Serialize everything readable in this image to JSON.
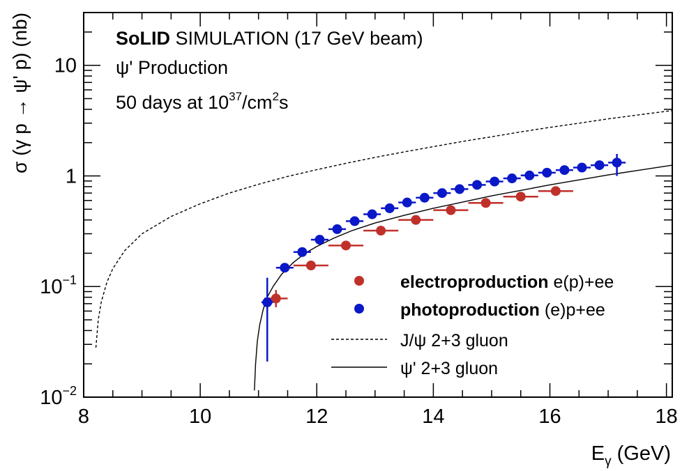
{
  "chart_data": {
    "type": "scatter",
    "title_bold": "SoLID",
    "title_rest": " SIMULATION (17 GeV beam)",
    "subtitle": "ψ' Production",
    "lumi_prefix": "50 days at 10",
    "lumi_exp": "37",
    "lumi_mid": "/cm",
    "lumi_exp2": "2",
    "lumi_suffix": "s",
    "xlabel_main": "E",
    "xlabel_sub": "γ",
    "xlabel_rest": " (GeV)",
    "ylabel": "σ (γ p → ψ' p) (nb)",
    "xlim": [
      8,
      18.1
    ],
    "ylim": [
      0.01,
      30
    ],
    "yscale": "log",
    "x_ticks": [
      8,
      10,
      12,
      14,
      16,
      18
    ],
    "x_tick_labels": [
      "8",
      "10",
      "12",
      "14",
      "16",
      "18"
    ],
    "y_tick_labels": [
      {
        "value": 10,
        "base": "10",
        "exp": ""
      },
      {
        "value": 1,
        "base": "1",
        "exp": ""
      },
      {
        "value": 0.1,
        "base": "10",
        "exp": "−1"
      },
      {
        "value": 0.01,
        "base": "10",
        "exp": "−2"
      }
    ],
    "legend_position": "bottom-right",
    "series": [
      {
        "name": "electroproduction",
        "name_bold": "electroproduction",
        "name_rest": " e(p)+ee",
        "kind": "points",
        "color": "#c0302a",
        "x": [
          11.3,
          11.9,
          12.5,
          13.1,
          13.7,
          14.3,
          14.9,
          15.5,
          16.1
        ],
        "y": [
          0.078,
          0.155,
          0.235,
          0.32,
          0.4,
          0.49,
          0.57,
          0.65,
          0.73
        ],
        "xerr": [
          0.2,
          0.3,
          0.3,
          0.3,
          0.3,
          0.3,
          0.3,
          0.3,
          0.3
        ],
        "yerr_lo": [
          0.065,
          0.148,
          0.228,
          0.313,
          0.393,
          0.483,
          0.563,
          0.643,
          0.723
        ],
        "yerr_hi": [
          0.093,
          0.163,
          0.243,
          0.327,
          0.407,
          0.497,
          0.577,
          0.657,
          0.737
        ]
      },
      {
        "name": "photoproduction",
        "name_bold": "photoproduction",
        "name_rest": " (e)p+ee",
        "kind": "points",
        "color": "#0a18c8",
        "x": [
          11.15,
          11.45,
          11.75,
          12.05,
          12.35,
          12.65,
          12.95,
          13.25,
          13.55,
          13.85,
          14.15,
          14.45,
          14.75,
          15.05,
          15.35,
          15.65,
          15.95,
          16.25,
          16.55,
          16.85,
          17.15
        ],
        "y": [
          0.072,
          0.148,
          0.205,
          0.265,
          0.33,
          0.39,
          0.45,
          0.51,
          0.575,
          0.635,
          0.7,
          0.76,
          0.83,
          0.89,
          0.95,
          1.01,
          1.07,
          1.13,
          1.19,
          1.25,
          1.32
        ],
        "xerr": [
          0.1,
          0.15,
          0.15,
          0.15,
          0.15,
          0.15,
          0.15,
          0.15,
          0.15,
          0.15,
          0.15,
          0.15,
          0.15,
          0.15,
          0.15,
          0.15,
          0.15,
          0.15,
          0.15,
          0.15,
          0.15
        ],
        "yerr_lo": [
          0.021,
          0.14,
          0.196,
          0.255,
          0.32,
          0.38,
          0.44,
          0.5,
          0.565,
          0.625,
          0.69,
          0.745,
          0.815,
          0.87,
          0.93,
          0.985,
          1.04,
          1.1,
          1.155,
          1.205,
          1.0
        ],
        "yerr_hi": [
          0.12,
          0.156,
          0.214,
          0.275,
          0.34,
          0.4,
          0.46,
          0.52,
          0.585,
          0.645,
          0.71,
          0.775,
          0.845,
          0.91,
          0.97,
          1.035,
          1.1,
          1.16,
          1.225,
          1.295,
          1.58
        ]
      },
      {
        "name": "J/ψ 2+3 gluon",
        "kind": "curve",
        "dashed": true,
        "color": "#000000",
        "x": [
          8.21,
          8.25,
          8.3,
          8.4,
          8.5,
          8.7,
          9,
          9.5,
          10,
          10.5,
          11,
          11.5,
          12,
          12.5,
          13,
          13.5,
          14,
          14.5,
          15,
          15.5,
          16,
          16.5,
          17,
          17.5,
          18.1
        ],
        "y": [
          0.028,
          0.05,
          0.072,
          0.11,
          0.145,
          0.21,
          0.3,
          0.43,
          0.56,
          0.7,
          0.84,
          0.99,
          1.14,
          1.3,
          1.47,
          1.65,
          1.84,
          2.05,
          2.26,
          2.5,
          2.75,
          3.0,
          3.28,
          3.55,
          3.9
        ]
      },
      {
        "name": "ψ' 2+3 gluon",
        "kind": "curve",
        "dashed": false,
        "color": "#000000",
        "x": [
          10.93,
          10.95,
          10.98,
          11.02,
          11.08,
          11.15,
          11.25,
          11.4,
          11.6,
          11.8,
          12,
          12.3,
          12.6,
          13,
          13.5,
          14,
          14.5,
          15,
          15.5,
          16,
          16.5,
          17,
          17.5,
          18.1
        ],
        "y": [
          0.0115,
          0.02,
          0.032,
          0.045,
          0.062,
          0.08,
          0.1,
          0.13,
          0.165,
          0.2,
          0.23,
          0.275,
          0.32,
          0.375,
          0.44,
          0.51,
          0.58,
          0.66,
          0.74,
          0.83,
          0.92,
          1.02,
          1.12,
          1.25
        ]
      }
    ]
  }
}
